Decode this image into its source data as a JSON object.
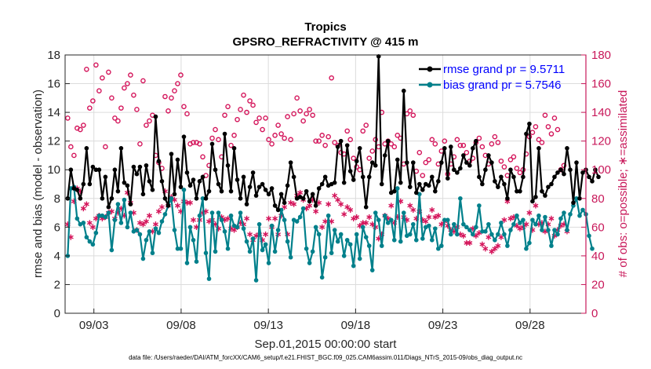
{
  "chart_data": {
    "type": "line",
    "title": "Tropics",
    "subtitle": "GPSRO_REFRACTIVITY @ 415 m",
    "xlabel": "Sep.01,2015 00:00:00 start",
    "ylabel": "rmse and bias (model - observation)",
    "ylabel_right": "# of obs: o=possible; ∗=assimilated",
    "xlim": [
      1.35,
      31.2
    ],
    "ylim": [
      0,
      18
    ],
    "ylim_right": [
      0,
      180
    ],
    "x_ticks": [
      3,
      8,
      13,
      18,
      23,
      28
    ],
    "x_tick_labels": [
      "09/03",
      "09/08",
      "09/13",
      "09/18",
      "09/23",
      "09/28"
    ],
    "y_ticks": [
      0,
      2,
      4,
      6,
      8,
      10,
      12,
      14,
      16,
      18
    ],
    "y_ticks_right": [
      0,
      20,
      40,
      60,
      80,
      100,
      120,
      140,
      160,
      180
    ],
    "grid": true,
    "footer": "data file: /Users/raeder/DAI/ATM_forcXX/CAM6_setup/f.e21.FHIST_BGC.f09_025.CAM6assim.011/Diags_NTrS_2015-09/obs_diag_output.nc",
    "colors": {
      "rmse": "#000000",
      "bias": "#00808b",
      "obs": "#d4145a",
      "legend_text": "#0000ff"
    },
    "legend": [
      "rmse grand pr = 9.5711",
      "bias grand pr = 5.7546"
    ],
    "legend_position": "top-right",
    "series": [
      {
        "name": "rmse grand pr = 9.5711",
        "axis": "left",
        "values": [
          8.0,
          10.0,
          8.7,
          8.6,
          8.0,
          9.0,
          11.5,
          9.0,
          10.2,
          10.0,
          10.0,
          8.0,
          9.5,
          7.4,
          8.0,
          10.0,
          8.5,
          11.5,
          9.1,
          8.9,
          7.6,
          10.2,
          9.7,
          10.2,
          8.3,
          10.3,
          9.2,
          8.6,
          13.7,
          10.6,
          9.2,
          8.0,
          7.5,
          11.1,
          8.3,
          10.7,
          8.8,
          12.3,
          9.8,
          8.9,
          9.3,
          8.0,
          9.2,
          9.5,
          8.0,
          8.5,
          11.8,
          10.0,
          9.0,
          8.5,
          12.5,
          10.3,
          8.5,
          11.5,
          9.3,
          8.0,
          9.5,
          7.6,
          8.8,
          9.8,
          8.2,
          8.8,
          9.0,
          8.6,
          8.3,
          8.7,
          7.5,
          7.2,
          8.3,
          7.7,
          8.9,
          10.5,
          9.5,
          8.0,
          8.1,
          8.0,
          8.5,
          7.8,
          8.3,
          7.5,
          8.7,
          9.0,
          9.5,
          8.9,
          9.0,
          9.1,
          11.6,
          12.0,
          9.1,
          11.7,
          9.9,
          9.3,
          10.6,
          11.5,
          9.5,
          7.4,
          9.5,
          10.5,
          10.3,
          17.9,
          9.0,
          11.0,
          12.0,
          8.4,
          8.5,
          10.7,
          9.1,
          15.5,
          10.5,
          8.8,
          10.5,
          8.4,
          9.0,
          8.6,
          9.0,
          8.9,
          9.5,
          8.5,
          9.2,
          10.5,
          11.5,
          9.4,
          11.6,
          10.0,
          9.8,
          10.1,
          11.0,
          10.5,
          10.3,
          11.5,
          12.0,
          9.5,
          9.0,
          10.0,
          11.0,
          10.5,
          9.2,
          8.8,
          9.5,
          9.0,
          8.0,
          10.0,
          9.5,
          8.5,
          8.5,
          9.5,
          12.5,
          13.2,
          7.8,
          8.1,
          11.5,
          8.5,
          8.2,
          8.8,
          9.0,
          9.5,
          9.8,
          10.0,
          9.7,
          11.5,
          10.0,
          7.7,
          10.5,
          8.0,
          9.8,
          10.0,
          9.5,
          9.2,
          10.0,
          9.5
        ],
        "x_start": 1.5,
        "x_step": 0.18
      },
      {
        "name": "bias grand pr = 5.7546",
        "axis": "left",
        "values": [
          4.0,
          8.7,
          8.8,
          6.6,
          6.2,
          6.3,
          5.3,
          5.0,
          4.8,
          5.6,
          6.8,
          6.8,
          6.7,
          7.0,
          4.4,
          6.5,
          7.6,
          6.3,
          7.9,
          6.0,
          7.0,
          5.7,
          5.8,
          5.5,
          3.8,
          5.1,
          5.7,
          4.2,
          5.9,
          5.6,
          6.4,
          6.9,
          7.5,
          8.0,
          5.8,
          4.5,
          4.5,
          8.6,
          3.5,
          6.0,
          5.1,
          3.6,
          6.8,
          8.0,
          4.2,
          2.4,
          7.0,
          4.3,
          7.0,
          6.5,
          5.7,
          4.5,
          6.8,
          6.1,
          6.0,
          7.0,
          5.9,
          5.0,
          4.3,
          5.2,
          2.3,
          6.2,
          4.4,
          4.8,
          3.5,
          6.1,
          4.3,
          5.8,
          7.2,
          6.5,
          5.0,
          3.9,
          6.5,
          6.4,
          6.7,
          7.3,
          4.5,
          3.5,
          4.3,
          6.0,
          5.5,
          2.5,
          3.9,
          6.8,
          4.2,
          5.8,
          5.0,
          5.5,
          4.0,
          5.1,
          4.8,
          3.3,
          5.5,
          3.8,
          6.0,
          5.3,
          4.7,
          3.0,
          7.0,
          6.5,
          4.7,
          6.8,
          6.3,
          6.5,
          5.1,
          8.7,
          5.0,
          7.0,
          5.4,
          5.5,
          6.2,
          5.1,
          8.3,
          5.2,
          6.0,
          6.1,
          5.1,
          5.9,
          4.5,
          4.7,
          6.5,
          6.5,
          5.5,
          6.2,
          5.5,
          8.0,
          6.2,
          6.0,
          5.8,
          5.5,
          6.0,
          7.5,
          5.7,
          5.7,
          6.2,
          5.5,
          5.1,
          5.5,
          6.3,
          5.5,
          4.7,
          5.8,
          6.2,
          6.8,
          6.3,
          6.5,
          4.5,
          4.9,
          6.5,
          6.2,
          6.8,
          5.8,
          6.7,
          5.8,
          4.7,
          5.8,
          5.5,
          6.6,
          7.0,
          5.8,
          6.9,
          7.5,
          8.0,
          6.8,
          7.2,
          6.9,
          5.4,
          4.5
        ],
        "x_start": 1.5,
        "x_step": 0.18
      },
      {
        "name": "possible obs",
        "axis": "right",
        "marker": "o",
        "values": [
          136,
          116,
          110,
          129,
          128,
          131,
          170,
          143,
          148,
          173,
          155,
          164,
          116,
          168,
          150,
          136,
          134,
          143,
          157,
          160,
          166,
          152,
          142,
          118,
          162,
          131,
          134,
          138,
          110,
          105,
          101,
          151,
          141,
          150,
          155,
          160,
          166,
          144,
          139,
          118,
          119,
          119,
          118,
          109,
          96,
          103,
          122,
          128,
          121,
          109,
          138,
          144,
          117,
          124,
          135,
          142,
          152,
          140,
          148,
          145,
          133,
          136,
          128,
          136,
          121,
          118,
          124,
          131,
          125,
          122,
          137,
          121,
          139,
          150,
          141,
          134,
          139,
          142,
          138,
          120,
          120,
          124,
          117,
          123,
          164,
          119,
          117,
          112,
          111,
          127,
          121,
          108,
          102,
          100,
          127,
          131,
          108,
          113,
          121,
          116,
          140,
          118,
          120,
          118,
          116,
          124,
          122,
          104,
          139,
          141,
          138,
          99,
          112,
          96,
          105,
          107,
          121,
          118,
          104,
          113,
          120,
          97,
          104,
          109,
          121,
          117,
          117,
          112,
          106,
          108,
          119,
          122,
          116,
          110,
          104,
          118,
          123,
          119,
          106,
          102,
          96,
          107,
          109,
          101,
          98,
          100,
          111,
          123,
          126,
          130,
          121,
          119,
          138,
          130,
          125,
          136,
          128,
          100,
          103
        ],
        "x_start": 1.5,
        "x_step": 0.18
      },
      {
        "name": "assimilated obs",
        "axis": "right",
        "marker": "*",
        "values": [
          62,
          53,
          78,
          87,
          85,
          73,
          76,
          63,
          60,
          66,
          68,
          66,
          67,
          70,
          71,
          66,
          70,
          73,
          68,
          84,
          77,
          70,
          58,
          63,
          62,
          64,
          68,
          57,
          62,
          71,
          74,
          85,
          75,
          81,
          79,
          75,
          71,
          78,
          77,
          77,
          65,
          60,
          65,
          70,
          71,
          64,
          65,
          62,
          59,
          67,
          65,
          66,
          59,
          58,
          60,
          63,
          62,
          66,
          55,
          51,
          54,
          55,
          51,
          55,
          66,
          60,
          66,
          55,
          68,
          74,
          55,
          77,
          76,
          82,
          84,
          79,
          73,
          75,
          79,
          71,
          77,
          60,
          64,
          76,
          64,
          82,
          79,
          76,
          69,
          74,
          72,
          66,
          67,
          61,
          63,
          63,
          67,
          62,
          60,
          52,
          55,
          68,
          66,
          75,
          63,
          67,
          78,
          67,
          65,
          75,
          72,
          66,
          71,
          65,
          64,
          67,
          72,
          67,
          68,
          62,
          64,
          61,
          58,
          57,
          60,
          55,
          54,
          49,
          49,
          59,
          54,
          56,
          48,
          45,
          53,
          43,
          45,
          47,
          53,
          65,
          78,
          66,
          67,
          61,
          59,
          60,
          62,
          70,
          58,
          75,
          62,
          63,
          57,
          62,
          66,
          54,
          58,
          61,
          62,
          57
        ],
        "x_start": 1.5,
        "x_step": 0.18
      }
    ]
  }
}
